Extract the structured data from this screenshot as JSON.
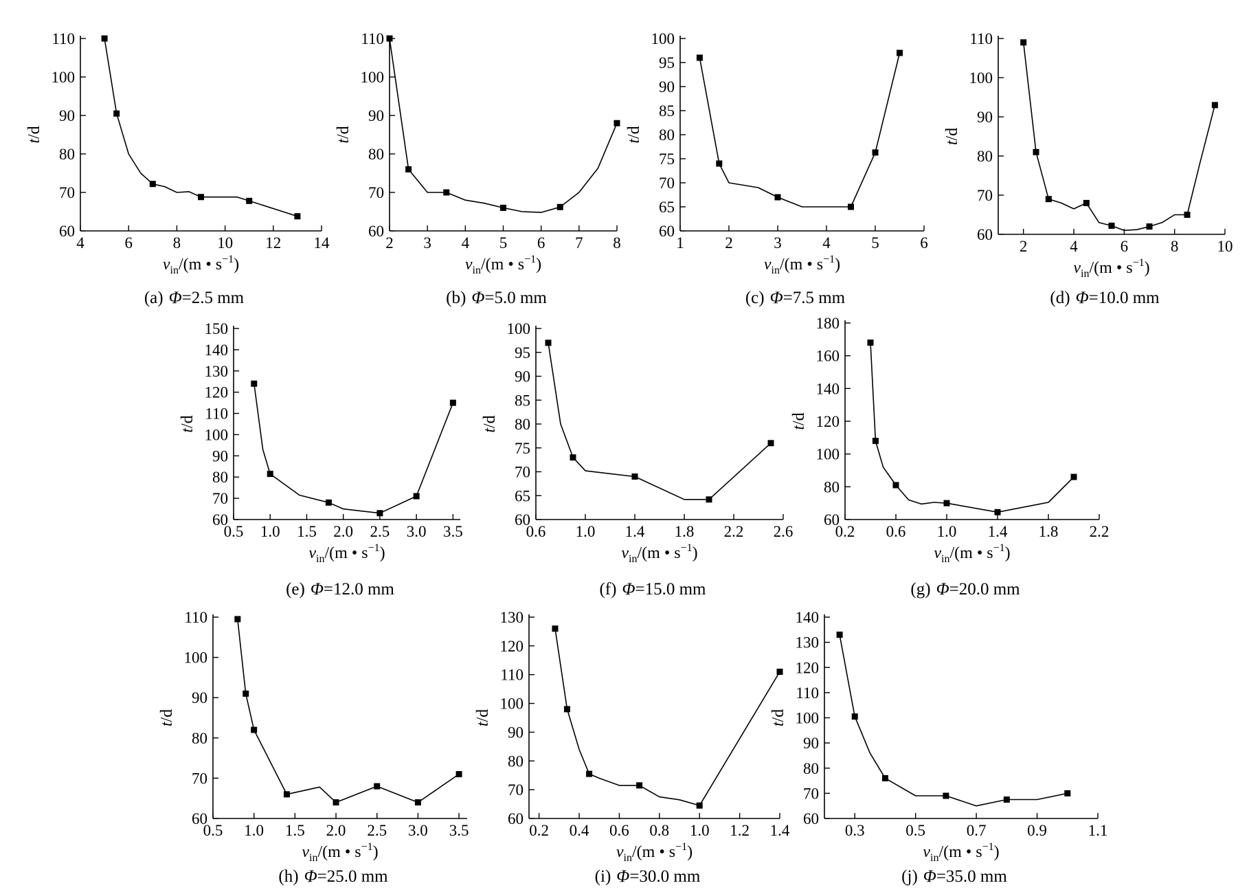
{
  "figure": {
    "colors": {
      "line": "#000000",
      "marker": "#000000",
      "background": "#ffffff"
    }
  },
  "chart_data": [
    {
      "type": "line",
      "caption": "(a) Φ=2.5 mm",
      "caption_prefix": "(a)",
      "caption_value": "=2.5 mm",
      "xlabel": "v",
      "xlabel_sub": "in",
      "xlabel_unit": "/(m • s",
      "xlabel_exp": "−1",
      "xlabel_close": ")",
      "ylabel": "t",
      "ylabel_unit": "/d",
      "xlim": [
        4,
        14
      ],
      "ylim": [
        60,
        110
      ],
      "xticks": [
        4,
        6,
        8,
        10,
        12,
        14
      ],
      "yticks": [
        60,
        70,
        80,
        90,
        100,
        110
      ],
      "xtick_labels": [
        "4",
        "6",
        "8",
        "10",
        "12",
        "14"
      ],
      "ytick_labels": [
        "60",
        "70",
        "80",
        "90",
        "100",
        "110"
      ],
      "x": [
        5,
        5.5,
        6,
        6.5,
        7,
        7.5,
        8,
        8.5,
        9,
        10.5,
        11,
        13
      ],
      "y": [
        110,
        90.5,
        80,
        75,
        72.2,
        71.5,
        70,
        70.2,
        68.8,
        68.8,
        67.8,
        63.8
      ],
      "markers": [
        [
          5,
          110
        ],
        [
          5.5,
          90.5
        ],
        [
          7,
          72.2
        ],
        [
          9,
          68.8
        ],
        [
          11,
          67.8
        ],
        [
          13,
          63.8
        ]
      ]
    },
    {
      "type": "line",
      "caption": "(b) Φ=5.0 mm",
      "caption_prefix": "(b)",
      "caption_value": "=5.0 mm",
      "xlabel": "v",
      "xlabel_sub": "in",
      "xlabel_unit": "/(m • s",
      "xlabel_exp": "−1",
      "xlabel_close": ")",
      "ylabel": "t",
      "ylabel_unit": "/d",
      "xlim": [
        2,
        8
      ],
      "ylim": [
        60,
        110
      ],
      "xticks": [
        2,
        3,
        4,
        5,
        6,
        7,
        8
      ],
      "yticks": [
        60,
        70,
        80,
        90,
        100,
        110
      ],
      "xtick_labels": [
        "2",
        "3",
        "4",
        "5",
        "6",
        "7",
        "8"
      ],
      "ytick_labels": [
        "60",
        "70",
        "80",
        "90",
        "100",
        "110"
      ],
      "x": [
        2,
        2.5,
        3,
        3.5,
        4,
        4.5,
        5,
        5.5,
        6,
        6.5,
        7,
        7.5,
        8
      ],
      "y": [
        110,
        76,
        70,
        70,
        68,
        67.2,
        66,
        65,
        64.8,
        66.2,
        70,
        76.3,
        88
      ],
      "markers": [
        [
          2,
          110
        ],
        [
          2.5,
          76
        ],
        [
          3.5,
          70
        ],
        [
          5,
          66
        ],
        [
          6.5,
          66.2
        ],
        [
          8,
          88
        ]
      ]
    },
    {
      "type": "line",
      "caption": "(c) Φ=7.5 mm",
      "caption_prefix": "(c)",
      "caption_value": "=7.5 mm",
      "xlabel": "v",
      "xlabel_sub": "in",
      "xlabel_unit": "/(m • s",
      "xlabel_exp": "−1",
      "xlabel_close": ")",
      "ylabel": "t",
      "ylabel_unit": "/d",
      "xlim": [
        1,
        6
      ],
      "ylim": [
        60,
        100
      ],
      "xticks": [
        1,
        2,
        3,
        4,
        5,
        6
      ],
      "yticks": [
        60,
        65,
        70,
        75,
        80,
        85,
        90,
        95,
        100
      ],
      "xtick_labels": [
        "1",
        "2",
        "3",
        "4",
        "5",
        "6"
      ],
      "ytick_labels": [
        "60",
        "65",
        "70",
        "75",
        "80",
        "85",
        "90",
        "95",
        "100"
      ],
      "x": [
        1.4,
        1.8,
        2,
        2.6,
        3,
        3.5,
        4.5,
        5,
        5.5
      ],
      "y": [
        96,
        74,
        70,
        69,
        67,
        65,
        65,
        76.3,
        97
      ],
      "markers": [
        [
          1.4,
          96
        ],
        [
          1.8,
          74
        ],
        [
          3,
          67
        ],
        [
          4.5,
          65
        ],
        [
          5,
          76.3
        ],
        [
          5.5,
          97
        ]
      ]
    },
    {
      "type": "line",
      "caption": "(d) Φ=10.0 mm",
      "caption_prefix": "(d)",
      "caption_value": "=10.0 mm",
      "xlabel": "v",
      "xlabel_sub": "in",
      "xlabel_unit": "/(m • s",
      "xlabel_exp": "−1",
      "xlabel_close": ")",
      "ylabel": "t",
      "ylabel_unit": "/d",
      "xlim": [
        1,
        10
      ],
      "ylim": [
        60,
        110
      ],
      "xticks": [
        2,
        4,
        6,
        8,
        10
      ],
      "yticks": [
        60,
        70,
        80,
        90,
        100,
        110
      ],
      "xtick_labels": [
        "2",
        "4",
        "6",
        "8",
        "10"
      ],
      "ytick_labels": [
        "60",
        "70",
        "80",
        "90",
        "100",
        "110"
      ],
      "x": [
        2,
        2.5,
        3,
        3.5,
        4,
        4.5,
        5,
        5.5,
        6,
        6.5,
        7,
        7.5,
        8,
        8.5,
        9,
        9.6
      ],
      "y": [
        109,
        81,
        69,
        68,
        66.5,
        68,
        63,
        62.2,
        61,
        61.2,
        62,
        63,
        65,
        65,
        78,
        93
      ],
      "markers": [
        [
          2,
          109
        ],
        [
          2.5,
          81
        ],
        [
          3,
          69
        ],
        [
          4.5,
          68
        ],
        [
          5.5,
          62.2
        ],
        [
          7,
          62
        ],
        [
          8.5,
          65
        ],
        [
          9.6,
          93
        ]
      ]
    },
    {
      "type": "line",
      "caption": "(e) Φ=12.0 mm",
      "caption_prefix": "(e)",
      "caption_value": "=12.0 mm",
      "xlabel": "v",
      "xlabel_sub": "in",
      "xlabel_unit": "/(m • s",
      "xlabel_exp": "−1",
      "xlabel_close": ")",
      "ylabel": "t",
      "ylabel_unit": "/d",
      "xlim": [
        0.5,
        3.6
      ],
      "ylim": [
        60,
        150
      ],
      "xticks": [
        0.5,
        1,
        1.5,
        2,
        2.5,
        3,
        3.5
      ],
      "yticks": [
        60,
        70,
        80,
        90,
        100,
        110,
        120,
        130,
        140,
        150
      ],
      "xtick_labels": [
        "0.5",
        "1.0",
        "1.5",
        "2.0",
        "2.5",
        "3.0",
        "3.5"
      ],
      "ytick_labels": [
        "60",
        "70",
        "80",
        "90",
        "100",
        "110",
        "120",
        "130",
        "140",
        "150"
      ],
      "x": [
        0.78,
        0.9,
        1,
        1.4,
        1.8,
        2,
        2.5,
        3,
        3.5
      ],
      "y": [
        124,
        93,
        81.5,
        71.5,
        68,
        65,
        63,
        71,
        115
      ],
      "markers": [
        [
          0.78,
          124
        ],
        [
          1,
          81.5
        ],
        [
          1.8,
          68
        ],
        [
          2.5,
          63
        ],
        [
          3,
          71
        ],
        [
          3.5,
          115
        ]
      ]
    },
    {
      "type": "line",
      "caption": "(f) Φ=15.0 mm",
      "caption_prefix": "(f)",
      "caption_value": "=15.0 mm",
      "xlabel": "v",
      "xlabel_sub": "in",
      "xlabel_unit": "/(m • s",
      "xlabel_exp": "−1",
      "xlabel_close": ")",
      "ylabel": "t",
      "ylabel_unit": "/d",
      "xlim": [
        0.6,
        2.6
      ],
      "ylim": [
        60,
        100
      ],
      "xticks": [
        0.6,
        1,
        1.4,
        1.8,
        2.2,
        2.6
      ],
      "yticks": [
        60,
        65,
        70,
        75,
        80,
        85,
        90,
        95,
        100
      ],
      "xtick_labels": [
        "0.6",
        "1.0",
        "1.4",
        "1.8",
        "2.2",
        "2.6"
      ],
      "ytick_labels": [
        "60",
        "65",
        "70",
        "75",
        "80",
        "85",
        "90",
        "95",
        "100"
      ],
      "x": [
        0.7,
        0.8,
        0.9,
        1,
        1.4,
        1.8,
        2,
        2.5
      ],
      "y": [
        97,
        80,
        73,
        70.2,
        69,
        64.2,
        64.2,
        76
      ],
      "markers": [
        [
          0.7,
          97
        ],
        [
          0.9,
          73
        ],
        [
          1.4,
          69
        ],
        [
          2,
          64.2
        ],
        [
          2.5,
          76
        ]
      ]
    },
    {
      "type": "line",
      "caption": "(g) Φ=20.0 mm",
      "caption_prefix": "(g)",
      "caption_value": "=20.0 mm",
      "xlabel": "v",
      "xlabel_sub": "in",
      "xlabel_unit": "/(m • s",
      "xlabel_exp": "−1",
      "xlabel_close": ")",
      "ylabel": "t",
      "ylabel_unit": "/d",
      "xlim": [
        0.2,
        2.2
      ],
      "ylim": [
        60,
        180
      ],
      "xticks": [
        0.2,
        0.6,
        1,
        1.4,
        1.8,
        2.2
      ],
      "yticks": [
        60,
        80,
        100,
        120,
        140,
        160,
        180
      ],
      "xtick_labels": [
        "0.2",
        "0.6",
        "1.0",
        "1.4",
        "1.8",
        "2.2"
      ],
      "ytick_labels": [
        "60",
        "80",
        "100",
        "120",
        "140",
        "160",
        "180"
      ],
      "x": [
        0.4,
        0.44,
        0.5,
        0.6,
        0.7,
        0.8,
        0.9,
        1,
        1.4,
        1.8,
        2
      ],
      "y": [
        168,
        108,
        92,
        81,
        72,
        69.5,
        70.5,
        70,
        64.5,
        70.5,
        86
      ],
      "markers": [
        [
          0.4,
          168
        ],
        [
          0.44,
          108
        ],
        [
          0.6,
          81
        ],
        [
          1,
          70
        ],
        [
          1.4,
          64.5
        ],
        [
          2,
          86
        ]
      ]
    },
    {
      "type": "line",
      "caption": "(h) Φ=25.0 mm",
      "caption_prefix": "(h)",
      "caption_value": "=25.0 mm",
      "xlabel": "v",
      "xlabel_sub": "in",
      "xlabel_unit": "/(m • s",
      "xlabel_exp": "−1",
      "xlabel_close": ")",
      "ylabel": "t",
      "ylabel_unit": "/d",
      "xlim": [
        0.5,
        3.6
      ],
      "ylim": [
        60,
        110
      ],
      "xticks": [
        0.5,
        1,
        1.5,
        2,
        2.5,
        3,
        3.5
      ],
      "yticks": [
        60,
        70,
        80,
        90,
        100,
        110
      ],
      "xtick_labels": [
        "0.5",
        "1.0",
        "1.5",
        "2.0",
        "2.5",
        "3.0",
        "3.5"
      ],
      "ytick_labels": [
        "60",
        "70",
        "80",
        "90",
        "100",
        "110"
      ],
      "x": [
        0.8,
        0.9,
        1,
        1.4,
        1.8,
        2,
        2.5,
        3,
        3.5
      ],
      "y": [
        109.5,
        91,
        82,
        66,
        67.8,
        64,
        68,
        64,
        71
      ],
      "markers": [
        [
          0.8,
          109.5
        ],
        [
          0.9,
          91
        ],
        [
          1,
          82
        ],
        [
          1.4,
          66
        ],
        [
          2,
          64
        ],
        [
          2.5,
          68
        ],
        [
          3,
          64
        ],
        [
          3.5,
          71
        ]
      ]
    },
    {
      "type": "line",
      "caption": "(i) Φ=30.0 mm",
      "caption_prefix": "(i)",
      "caption_value": "=30.0 mm",
      "xlabel": "v",
      "xlabel_sub": "in",
      "xlabel_unit": "/(m • s",
      "xlabel_exp": "−1",
      "xlabel_close": ")",
      "ylabel": "t",
      "ylabel_unit": "/d",
      "xlim": [
        0.15,
        1.4
      ],
      "ylim": [
        60,
        130
      ],
      "xticks": [
        0.2,
        0.4,
        0.6,
        0.8,
        1,
        1.2,
        1.4
      ],
      "yticks": [
        60,
        70,
        80,
        90,
        100,
        110,
        120,
        130
      ],
      "xtick_labels": [
        "0.2",
        "0.4",
        "0.6",
        "0.8",
        "1.0",
        "1.2",
        "1.4"
      ],
      "ytick_labels": [
        "60",
        "70",
        "80",
        "90",
        "100",
        "110",
        "120",
        "130"
      ],
      "x": [
        0.28,
        0.34,
        0.4,
        0.45,
        0.5,
        0.6,
        0.7,
        0.8,
        0.9,
        1,
        1.4
      ],
      "y": [
        126,
        98,
        84,
        75.5,
        74,
        71.5,
        71.5,
        67.5,
        66.5,
        64.5,
        111
      ],
      "markers": [
        [
          0.28,
          126
        ],
        [
          0.34,
          98
        ],
        [
          0.45,
          75.5
        ],
        [
          0.7,
          71.5
        ],
        [
          1,
          64.5
        ],
        [
          1.4,
          111
        ]
      ]
    },
    {
      "type": "line",
      "caption": "(j) Φ=35.0 mm",
      "caption_prefix": "(j)",
      "caption_value": "=35.0 mm",
      "xlabel": "v",
      "xlabel_sub": "in",
      "xlabel_unit": "/(m • s",
      "xlabel_exp": "−1",
      "xlabel_close": ")",
      "ylabel": "t",
      "ylabel_unit": "/d",
      "xlim": [
        0.2,
        1.1
      ],
      "ylim": [
        60,
        140
      ],
      "xticks": [
        0.3,
        0.5,
        0.7,
        0.9,
        1.1
      ],
      "yticks": [
        60,
        70,
        80,
        90,
        100,
        110,
        120,
        130,
        140
      ],
      "xtick_labels": [
        "0.3",
        "0.5",
        "0.7",
        "0.9",
        "1.1"
      ],
      "ytick_labels": [
        "60",
        "70",
        "80",
        "90",
        "100",
        "110",
        "120",
        "130",
        "140"
      ],
      "x": [
        0.25,
        0.3,
        0.35,
        0.4,
        0.5,
        0.6,
        0.7,
        0.8,
        0.9,
        1
      ],
      "y": [
        133,
        100.5,
        86,
        76,
        69,
        69,
        65,
        67.5,
        67.5,
        70
      ],
      "markers": [
        [
          0.25,
          133
        ],
        [
          0.3,
          100.5
        ],
        [
          0.4,
          76
        ],
        [
          0.6,
          69
        ],
        [
          0.8,
          67.5
        ],
        [
          1,
          70
        ]
      ]
    }
  ]
}
